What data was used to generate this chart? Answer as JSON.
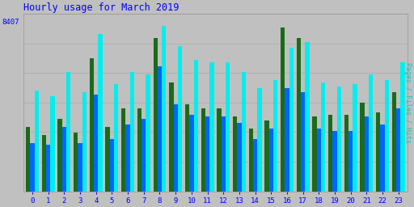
{
  "title": "Hourly usage for March 2019",
  "ylabel": "Pages / Files / Hits",
  "xlabel_values": [
    0,
    1,
    2,
    3,
    4,
    5,
    6,
    7,
    8,
    9,
    10,
    11,
    12,
    13,
    14,
    15,
    16,
    17,
    18,
    19,
    20,
    21,
    22,
    23
  ],
  "ytick_label": "8407",
  "background_color": "#c0c0c0",
  "plot_bg_color": "#c0c0c0",
  "title_color": "#0000ff",
  "ylabel_color": "#00cccc",
  "tick_color": "#0000ff",
  "grid_color": "#aaaaaa",
  "colors": {
    "pages": "#1a6b1a",
    "files": "#0066ff",
    "hits": "#00eeee"
  },
  "pages": [
    3200,
    2800,
    3600,
    2900,
    6600,
    3200,
    4100,
    4100,
    7600,
    5400,
    4300,
    4100,
    4100,
    3700,
    3100,
    3500,
    8100,
    7600,
    3700,
    3800,
    3800,
    4400,
    3900,
    4900
  ],
  "files": [
    2400,
    2300,
    3200,
    2400,
    4800,
    2600,
    3300,
    3600,
    6200,
    4300,
    3800,
    3700,
    3700,
    3400,
    2600,
    3100,
    5100,
    4900,
    3100,
    3000,
    3000,
    3700,
    3300,
    4100
  ],
  "hits": [
    5000,
    4700,
    5900,
    4900,
    7800,
    5300,
    5900,
    5800,
    8200,
    7200,
    6500,
    6400,
    6400,
    5900,
    5100,
    5500,
    7100,
    7400,
    5400,
    5200,
    5300,
    5800,
    5500,
    6400
  ],
  "ylim": [
    0,
    8800
  ],
  "ytick_pos": 8407,
  "bar_width": 0.27,
  "figsize": [
    5.12,
    2.56
  ],
  "dpi": 100,
  "num_gridlines": 6
}
